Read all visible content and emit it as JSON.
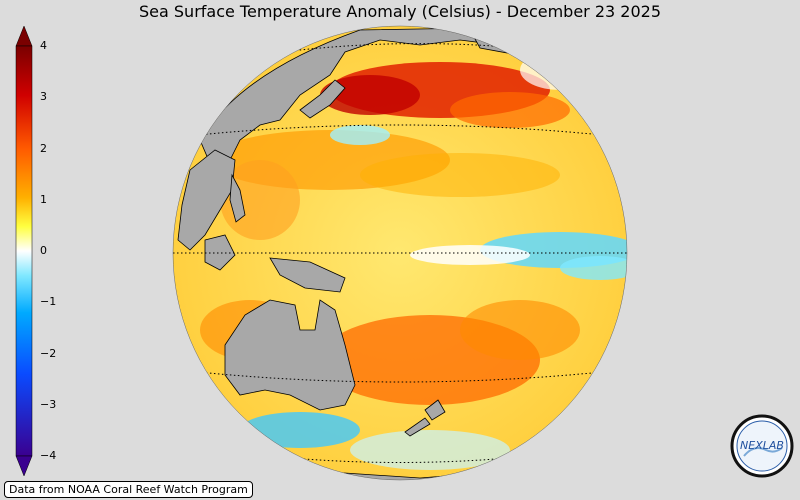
{
  "title": "Sea Surface Temperature Anomaly (Celsius) - December 23 2025",
  "colorbar": {
    "ticks": [
      "4",
      "3",
      "2",
      "1",
      "0",
      "−1",
      "−2",
      "−3",
      "−4"
    ],
    "min": -4,
    "max": 4,
    "colors": [
      "#3a0090",
      "#0a4bff",
      "#00aaff",
      "#80e8ff",
      "#ffffff",
      "#ffff40",
      "#ffb000",
      "#ff5a00",
      "#d00000",
      "#7a0000"
    ]
  },
  "map": {
    "projection": "orthographic",
    "center": "Pacific Ocean",
    "land_color": "#a8a8a8",
    "ocean_base": "#ffe060"
  },
  "attribution": "Data from NOAA Coral Reef Watch Program",
  "logo": {
    "name": "NEXLAB"
  }
}
